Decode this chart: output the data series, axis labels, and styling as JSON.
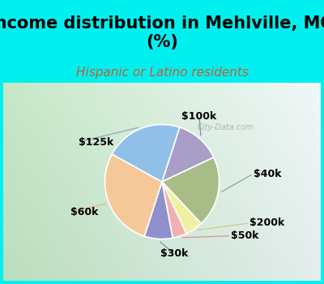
{
  "title": "Income distribution in Mehlville, MO\n(%)",
  "subtitle": "Hispanic or Latino residents",
  "labels": [
    "$100k",
    "$40k",
    "$200k",
    "$50k",
    "$30k",
    "$60k",
    "$125k"
  ],
  "sizes": [
    13,
    20,
    5,
    4,
    8,
    28,
    22
  ],
  "colors": [
    "#a89ec8",
    "#a8bc88",
    "#f0f0a0",
    "#f0b0b0",
    "#9090cc",
    "#f5c89a",
    "#90c0e8"
  ],
  "title_fontsize": 15,
  "subtitle_fontsize": 11,
  "subtitle_color": "#c06030",
  "bg_cyan": "#00f0f0",
  "label_fontsize": 9,
  "watermark": "City-Data.com"
}
